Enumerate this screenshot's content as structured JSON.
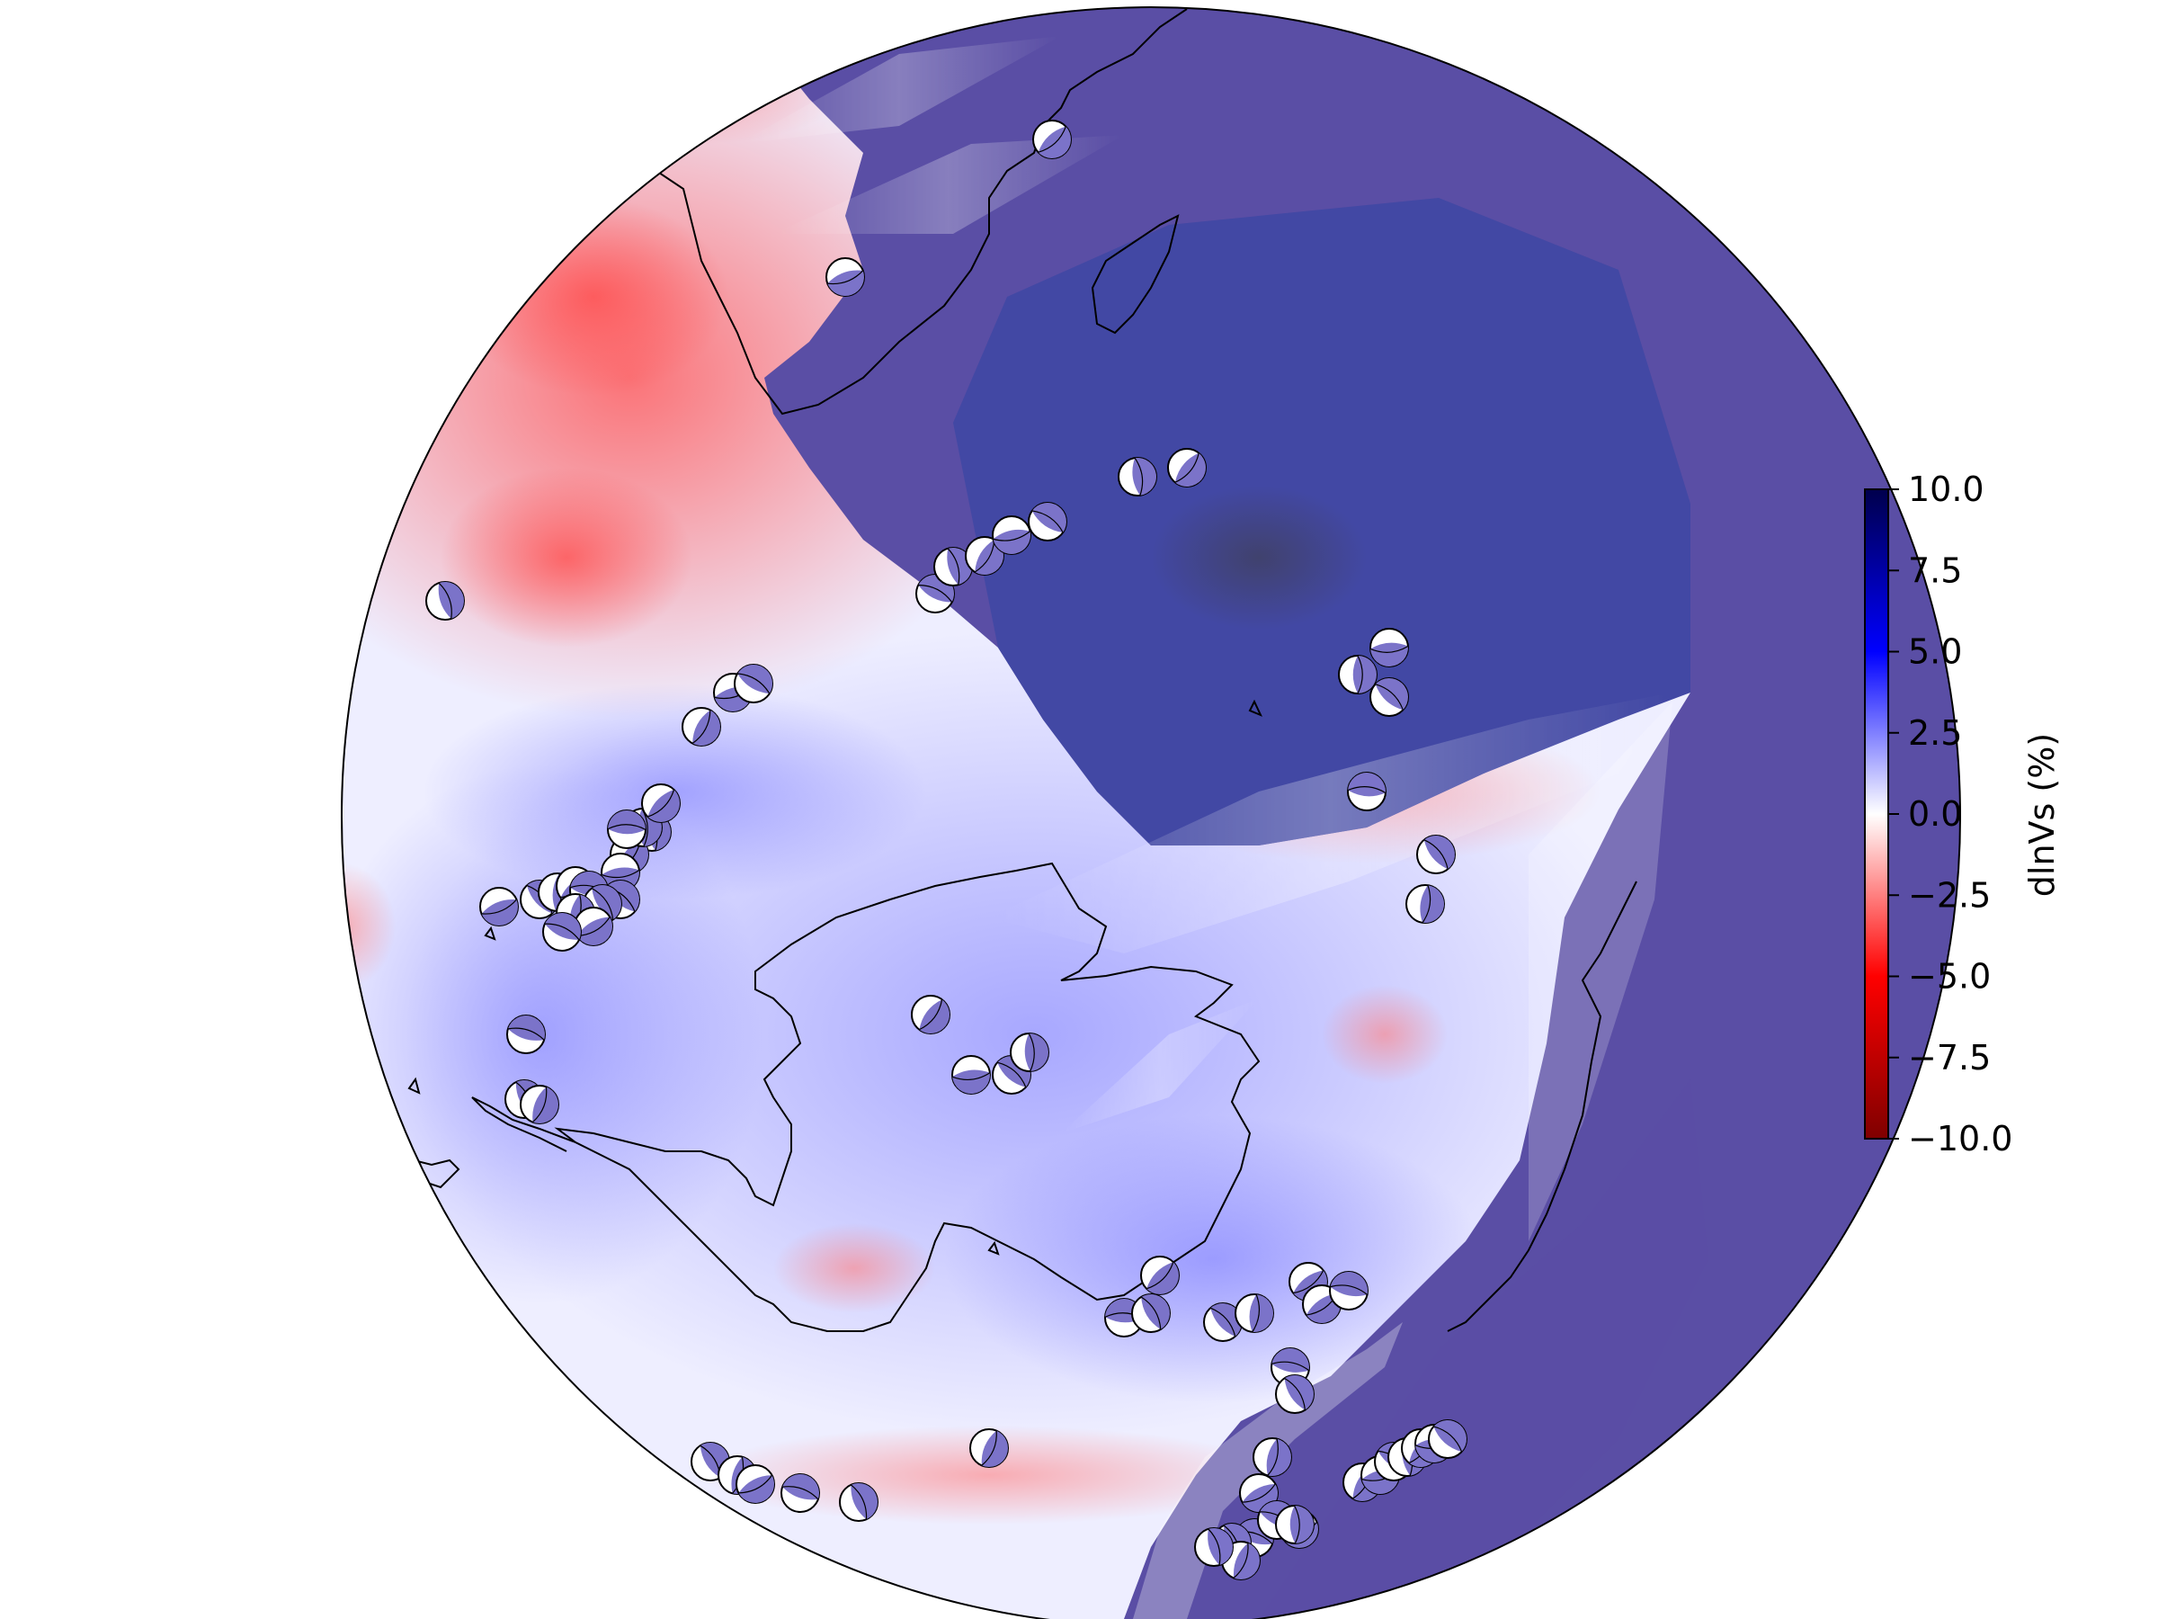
{
  "map": {
    "projection": "orthographic",
    "region": "southern hemisphere / Antarctica",
    "quantity": "shear-wave velocity perturbation",
    "colormap": "seismic_r",
    "masked_region_color": "#4848a6",
    "landmasses": [
      "Antarctica",
      "South America",
      "Africa",
      "Madagascar",
      "Australia"
    ],
    "beachball_groups": [
      {
        "name": "scotia-arc",
        "count": 14
      },
      {
        "name": "south-sandwich-cluster",
        "count": 22
      },
      {
        "name": "chile-trench",
        "count": 5
      },
      {
        "name": "southeast-indian-ridge",
        "count": 9
      },
      {
        "name": "macquarie-cluster",
        "count": 18
      },
      {
        "name": "pacific-antarctic-ridge",
        "count": 12
      },
      {
        "name": "mid-atlantic-ridge",
        "count": 12
      },
      {
        "name": "southwest-indian-ridge",
        "count": 6
      }
    ]
  },
  "colorbar": {
    "label": "dlnVs (%)",
    "min": -10.0,
    "max": 10.0,
    "ticks": [
      "10.0",
      "7.5",
      "5.0",
      "2.5",
      "0.0",
      "−2.5",
      "−5.0",
      "−7.5",
      "−10.0"
    ],
    "colors": {
      "top": "#00004c",
      "upper": "#0000ff",
      "mid": "#ffffff",
      "lower": "#ff0000",
      "bottom": "#7f0000"
    }
  }
}
